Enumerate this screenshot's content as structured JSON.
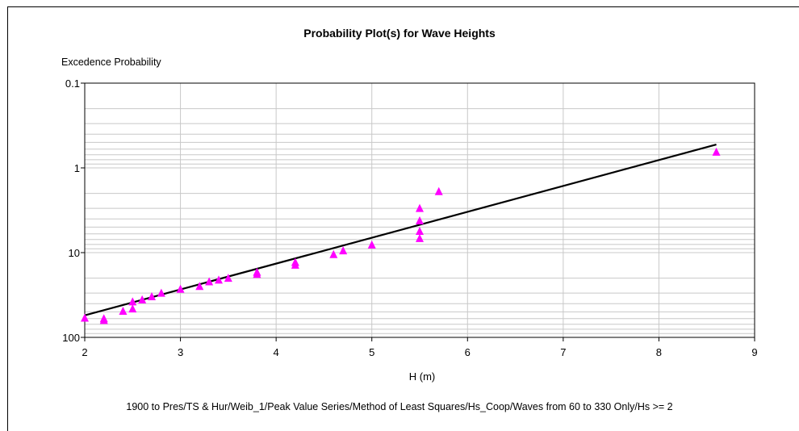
{
  "chart_data": {
    "type": "scatter",
    "title": "Probability Plot(s) for Wave Heights",
    "xlabel": "H (m)",
    "ylabel": "Excedence Probability",
    "footer": "1900 to Pres/TS & Hur/Weib_1/Peak Value Series/Method of Least Squares/Hs_Coop/Waves from 60 to 330 Only/Hs >= 2",
    "xlim": [
      2,
      9
    ],
    "ylim": [
      0.1,
      100
    ],
    "y_scale": "log",
    "y_inverted": true,
    "grid": true,
    "x_ticks": [
      "2",
      "3",
      "4",
      "5",
      "6",
      "7",
      "8",
      "9"
    ],
    "y_ticks": [
      {
        "value": 0.1,
        "label": "0.1"
      },
      {
        "value": 1,
        "label": "1"
      },
      {
        "value": 10,
        "label": "10"
      },
      {
        "value": 100,
        "label": "100"
      }
    ],
    "marker_color": "#ff00ff",
    "line_color": "#000000",
    "fit_line": {
      "x": [
        2.0,
        8.6
      ],
      "y": [
        55,
        0.53
      ]
    },
    "points": [
      {
        "x": 2.0,
        "y": 59
      },
      {
        "x": 2.2,
        "y": 63
      },
      {
        "x": 2.2,
        "y": 60
      },
      {
        "x": 2.4,
        "y": 49
      },
      {
        "x": 2.5,
        "y": 46
      },
      {
        "x": 2.5,
        "y": 38
      },
      {
        "x": 2.6,
        "y": 36
      },
      {
        "x": 2.7,
        "y": 33
      },
      {
        "x": 2.8,
        "y": 30
      },
      {
        "x": 3.0,
        "y": 27
      },
      {
        "x": 3.2,
        "y": 25
      },
      {
        "x": 3.3,
        "y": 22
      },
      {
        "x": 3.4,
        "y": 21
      },
      {
        "x": 3.5,
        "y": 20
      },
      {
        "x": 3.8,
        "y": 18
      },
      {
        "x": 3.8,
        "y": 17
      },
      {
        "x": 4.2,
        "y": 14
      },
      {
        "x": 4.2,
        "y": 13
      },
      {
        "x": 4.6,
        "y": 10.5
      },
      {
        "x": 4.7,
        "y": 9.5
      },
      {
        "x": 5.0,
        "y": 8.1
      },
      {
        "x": 5.5,
        "y": 6.8
      },
      {
        "x": 5.5,
        "y": 5.6
      },
      {
        "x": 5.5,
        "y": 4.2
      },
      {
        "x": 5.5,
        "y": 3.0
      },
      {
        "x": 5.7,
        "y": 1.9
      },
      {
        "x": 8.6,
        "y": 0.65
      }
    ]
  }
}
